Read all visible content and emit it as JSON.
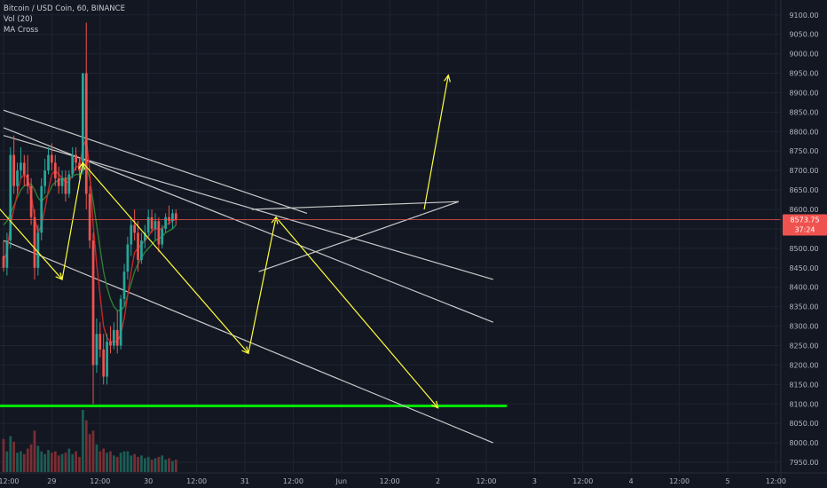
{
  "header": {
    "symbol": "Bitcoin / USD Coin, 60, BINANCE",
    "volume_indicator": "Vol (20)",
    "ma_indicator": "MA Cross"
  },
  "colors": {
    "background": "#131722",
    "grid": "#1f2433",
    "up": "#26a69a",
    "down": "#ef5350",
    "vol_up": "#1b5e55",
    "vol_down": "#7a2e34",
    "ma_fast": "#c62828",
    "ma_slow": "#2e7d32",
    "trendline": "#c9c9c9",
    "arrow": "#ffff3b",
    "support": "#00e600",
    "price_line": "#ef5350",
    "axis_text": "#b2b5be"
  },
  "chart_data": {
    "type": "candlestick",
    "y_axis": {
      "range": [
        7925,
        9120
      ],
      "ticks": [
        7950,
        8000,
        8050,
        8100,
        8150,
        8200,
        8250,
        8300,
        8350,
        8400,
        8450,
        8500,
        8550,
        8600,
        8650,
        8700,
        8750,
        8800,
        8850,
        8900,
        8950,
        9000,
        9050,
        9100
      ]
    },
    "x_axis": {
      "range": [
        0,
        105
      ],
      "ticks": [
        {
          "t": 0,
          "label": "12:00"
        },
        {
          "t": 7,
          "label": "29"
        },
        {
          "t": 14,
          "label": "12:00"
        },
        {
          "t": 21,
          "label": "30"
        },
        {
          "t": 28,
          "label": "12:00"
        },
        {
          "t": 35,
          "label": "31"
        },
        {
          "t": 42,
          "label": "12:00"
        },
        {
          "t": 49,
          "label": "Jun"
        },
        {
          "t": 56,
          "label": "12:00"
        },
        {
          "t": 63,
          "label": "2"
        },
        {
          "t": 70,
          "label": "12:00"
        },
        {
          "t": 77,
          "label": "3"
        },
        {
          "t": 84,
          "label": "12:00"
        },
        {
          "t": 91,
          "label": "4"
        },
        {
          "t": 98,
          "label": "12:00"
        },
        {
          "t": 105,
          "label": "5"
        },
        {
          "t": 112,
          "label": "12:00"
        }
      ]
    },
    "last_price": {
      "value": 8573.75,
      "label": "8573.75",
      "countdown": "37:24"
    },
    "candles": [
      {
        "o": 8480,
        "h": 8520,
        "l": 8440,
        "c": 8450
      },
      {
        "o": 8450,
        "h": 8540,
        "l": 8430,
        "c": 8520
      },
      {
        "o": 8520,
        "h": 8760,
        "l": 8500,
        "c": 8740
      },
      {
        "o": 8740,
        "h": 8790,
        "l": 8640,
        "c": 8660
      },
      {
        "o": 8660,
        "h": 8720,
        "l": 8640,
        "c": 8700
      },
      {
        "o": 8700,
        "h": 8760,
        "l": 8680,
        "c": 8720
      },
      {
        "o": 8720,
        "h": 8740,
        "l": 8660,
        "c": 8690
      },
      {
        "o": 8690,
        "h": 8740,
        "l": 8640,
        "c": 8660
      },
      {
        "o": 8660,
        "h": 8680,
        "l": 8560,
        "c": 8580
      },
      {
        "o": 8580,
        "h": 8600,
        "l": 8420,
        "c": 8450
      },
      {
        "o": 8450,
        "h": 8560,
        "l": 8430,
        "c": 8540
      },
      {
        "o": 8540,
        "h": 8680,
        "l": 8520,
        "c": 8660
      },
      {
        "o": 8660,
        "h": 8730,
        "l": 8640,
        "c": 8700
      },
      {
        "o": 8700,
        "h": 8760,
        "l": 8690,
        "c": 8740
      },
      {
        "o": 8740,
        "h": 8770,
        "l": 8700,
        "c": 8720
      },
      {
        "o": 8720,
        "h": 8740,
        "l": 8660,
        "c": 8680
      },
      {
        "o": 8680,
        "h": 8710,
        "l": 8640,
        "c": 8660
      },
      {
        "o": 8660,
        "h": 8700,
        "l": 8640,
        "c": 8680
      },
      {
        "o": 8680,
        "h": 8700,
        "l": 8620,
        "c": 8640
      },
      {
        "o": 8640,
        "h": 8700,
        "l": 8630,
        "c": 8690
      },
      {
        "o": 8690,
        "h": 8760,
        "l": 8680,
        "c": 8740
      },
      {
        "o": 8740,
        "h": 8760,
        "l": 8700,
        "c": 8720
      },
      {
        "o": 8720,
        "h": 8730,
        "l": 8680,
        "c": 8700
      },
      {
        "o": 8700,
        "h": 8950,
        "l": 8690,
        "c": 8950
      },
      {
        "o": 8950,
        "h": 9080,
        "l": 8600,
        "c": 8640
      },
      {
        "o": 8640,
        "h": 8660,
        "l": 8500,
        "c": 8520
      },
      {
        "o": 8520,
        "h": 8540,
        "l": 8100,
        "c": 8200
      },
      {
        "o": 8200,
        "h": 8320,
        "l": 8180,
        "c": 8280
      },
      {
        "o": 8280,
        "h": 8310,
        "l": 8220,
        "c": 8240
      },
      {
        "o": 8240,
        "h": 8280,
        "l": 8150,
        "c": 8170
      },
      {
        "o": 8170,
        "h": 8280,
        "l": 8150,
        "c": 8260
      },
      {
        "o": 8260,
        "h": 8300,
        "l": 8230,
        "c": 8250
      },
      {
        "o": 8250,
        "h": 8310,
        "l": 8240,
        "c": 8290
      },
      {
        "o": 8290,
        "h": 8340,
        "l": 8230,
        "c": 8250
      },
      {
        "o": 8250,
        "h": 8380,
        "l": 8240,
        "c": 8370
      },
      {
        "o": 8370,
        "h": 8460,
        "l": 8350,
        "c": 8440
      },
      {
        "o": 8440,
        "h": 8530,
        "l": 8420,
        "c": 8510
      },
      {
        "o": 8510,
        "h": 8580,
        "l": 8480,
        "c": 8560
      },
      {
        "o": 8560,
        "h": 8600,
        "l": 8520,
        "c": 8540
      },
      {
        "o": 8540,
        "h": 8570,
        "l": 8440,
        "c": 8470
      },
      {
        "o": 8470,
        "h": 8540,
        "l": 8460,
        "c": 8520
      },
      {
        "o": 8520,
        "h": 8560,
        "l": 8500,
        "c": 8540
      },
      {
        "o": 8540,
        "h": 8600,
        "l": 8530,
        "c": 8580
      },
      {
        "o": 8580,
        "h": 8600,
        "l": 8540,
        "c": 8550
      },
      {
        "o": 8550,
        "h": 8590,
        "l": 8520,
        "c": 8570
      },
      {
        "o": 8570,
        "h": 8580,
        "l": 8490,
        "c": 8510
      },
      {
        "o": 8510,
        "h": 8560,
        "l": 8500,
        "c": 8550
      },
      {
        "o": 8550,
        "h": 8590,
        "l": 8540,
        "c": 8580
      },
      {
        "o": 8580,
        "h": 8610,
        "l": 8560,
        "c": 8570
      },
      {
        "o": 8570,
        "h": 8600,
        "l": 8550,
        "c": 8590
      },
      {
        "o": 8590,
        "h": 8600,
        "l": 8560,
        "c": 8574
      }
    ],
    "volume": [
      48,
      30,
      52,
      44,
      28,
      30,
      26,
      34,
      40,
      60,
      38,
      30,
      26,
      32,
      28,
      30,
      24,
      26,
      28,
      34,
      26,
      30,
      22,
      90,
      75,
      55,
      60,
      40,
      30,
      34,
      28,
      30,
      24,
      22,
      28,
      30,
      30,
      24,
      26,
      22,
      24,
      20,
      22,
      18,
      20,
      22,
      24,
      18,
      20,
      16,
      18
    ],
    "ma_fast": [
      8470,
      8490,
      8560,
      8600,
      8640,
      8680,
      8690,
      8680,
      8640,
      8580,
      8540,
      8560,
      8600,
      8650,
      8690,
      8700,
      8690,
      8680,
      8670,
      8670,
      8690,
      8710,
      8710,
      8760,
      8780,
      8700,
      8560,
      8460,
      8380,
      8300,
      8270,
      8260,
      8260,
      8260,
      8280,
      8320,
      8380,
      8440,
      8490,
      8500,
      8510,
      8520,
      8530,
      8545,
      8550,
      8550,
      8550,
      8560,
      8565,
      8570,
      8575
    ],
    "ma_slow": [
      8560,
      8570,
      8590,
      8610,
      8630,
      8650,
      8660,
      8665,
      8665,
      8650,
      8630,
      8620,
      8630,
      8640,
      8660,
      8670,
      8675,
      8680,
      8680,
      8680,
      8685,
      8690,
      8690,
      8700,
      8710,
      8680,
      8620,
      8560,
      8500,
      8440,
      8400,
      8370,
      8350,
      8340,
      8340,
      8350,
      8380,
      8410,
      8440,
      8460,
      8475,
      8490,
      8500,
      8510,
      8520,
      8525,
      8530,
      8540,
      8545,
      8550,
      8560
    ],
    "support_level": 8095,
    "trendlines": [
      {
        "from": [
          0,
          8790
        ],
        "to": [
          71,
          8420
        ]
      },
      {
        "from": [
          0,
          8810
        ],
        "to": [
          71,
          8310
        ]
      },
      {
        "from": [
          0,
          8520
        ],
        "to": [
          71,
          8000
        ]
      },
      {
        "from": [
          0,
          8855
        ],
        "to": [
          44,
          8590
        ]
      },
      {
        "from": [
          37,
          8440
        ],
        "to": [
          66,
          8620
        ]
      },
      {
        "from": [
          36,
          8600
        ],
        "to": [
          66,
          8620
        ]
      }
    ],
    "arrows": [
      {
        "from": [
          -1,
          8610
        ],
        "to": [
          8.5,
          8420
        ]
      },
      {
        "from": [
          8.5,
          8420
        ],
        "to": [
          11.5,
          8720
        ]
      },
      {
        "from": [
          11.5,
          8720
        ],
        "to": [
          35.5,
          8230
        ]
      },
      {
        "from": [
          35.5,
          8230
        ],
        "to": [
          39.5,
          8580
        ]
      },
      {
        "from": [
          39.5,
          8580
        ],
        "to": [
          63,
          8090
        ]
      },
      {
        "from": [
          61,
          8600
        ],
        "to": [
          64.5,
          8945
        ]
      }
    ]
  }
}
